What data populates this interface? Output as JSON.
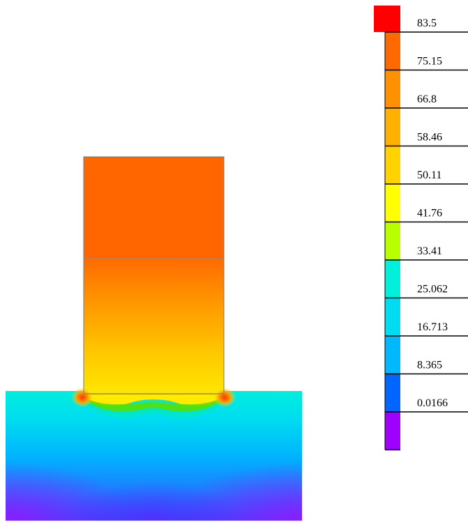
{
  "contour_plot": {
    "regions": [
      {
        "name": "upper-block",
        "value": 72.0,
        "color": "#ff6600"
      },
      {
        "name": "lower-block-top",
        "value": 70.0,
        "color": "#ff6a00"
      },
      {
        "name": "lower-block-bottom",
        "value": 50.5,
        "color": "#ffe000"
      },
      {
        "name": "fillet-hotspot",
        "value": 66.0,
        "color": "#ff7a00"
      },
      {
        "name": "interface",
        "value": 33.0,
        "color": "#99ff00"
      },
      {
        "name": "base-top",
        "value": 25.0,
        "color": "#00eedd"
      },
      {
        "name": "base-mid",
        "value": 12.0,
        "color": "#00b4ff"
      },
      {
        "name": "base-bottom",
        "value": 3.0,
        "color": "#1e4cff"
      },
      {
        "name": "base-corners",
        "value": 0.0,
        "color": "#7a1fff"
      }
    ]
  },
  "legend": {
    "top_color": "#ff0000",
    "labels": [
      "83.5",
      "75.15",
      "66.8",
      "58.46",
      "50.11",
      "41.76",
      "33.41",
      "25.062",
      "16.713",
      "8.365",
      "0.0166"
    ],
    "band_colors": [
      "#ff6a00",
      "#ff9000",
      "#ffb000",
      "#ffd200",
      "#ffff00",
      "#b8ff00",
      "#00f0dc",
      "#00dcf0",
      "#00b8ff",
      "#0066ff",
      "#a000ff"
    ]
  }
}
